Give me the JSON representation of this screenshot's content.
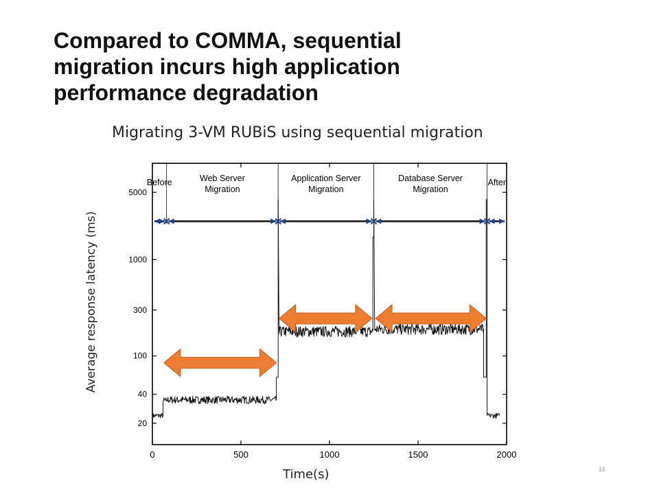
{
  "slide": {
    "title_lines": [
      "Compared to COMMA, sequential",
      "migration incurs high application",
      "performance degradation"
    ],
    "page_number": "16"
  },
  "colors": {
    "arrow_orange": "#ed7d31",
    "arrow_orange_border": "#c55a1a",
    "trace": "#111111",
    "phase_arrow": "#111111",
    "phase_marker": "#1f3f8f"
  },
  "chart_data": {
    "type": "line",
    "title": "Migrating 3-VM RUBiS using sequential migration",
    "xlabel": "Time(s)",
    "ylabel": "Average response latency (ms)",
    "xlim": [
      0,
      2000
    ],
    "ylim": [
      12,
      10000
    ],
    "y_scale": "log",
    "x_ticks": [
      "0",
      "500",
      "1000",
      "1500",
      "2000"
    ],
    "x_tick_values": [
      0,
      500,
      1000,
      1500,
      2000
    ],
    "y_ticks": [
      "20",
      "40",
      "100",
      "300",
      "1000",
      "5000"
    ],
    "y_tick_values": [
      20,
      40,
      100,
      300,
      1000,
      5000
    ],
    "grid": false,
    "phases": [
      {
        "label_lines": [
          "Before"
        ],
        "start": 0,
        "end": 80
      },
      {
        "label_lines": [
          "Web Server",
          "Migration"
        ],
        "start": 80,
        "end": 710
      },
      {
        "label_lines": [
          "Application Server",
          "Migration"
        ],
        "start": 710,
        "end": 1250
      },
      {
        "label_lines": [
          "Database Server",
          "Migration"
        ],
        "start": 1250,
        "end": 1890
      },
      {
        "label_lines": [
          "After"
        ],
        "start": 1890,
        "end": 2000
      }
    ],
    "phase_arrow_latency": 2500,
    "series": [
      {
        "x": [
          0,
          60,
          60,
          80,
          80,
          700,
          700,
          710,
          710,
          715,
          715,
          1245,
          1245,
          1250,
          1250,
          1255,
          1255,
          1870,
          1870,
          1885,
          1885,
          1890,
          1890,
          1960
        ],
        "y": [
          24,
          24,
          34,
          34,
          35,
          35,
          60,
          60,
          4200,
          170,
          180,
          180,
          1700,
          1700,
          4200,
          185,
          190,
          190,
          60,
          60,
          4200,
          4200,
          24,
          24
        ]
      }
    ],
    "annotations": [
      {
        "shape": "double-arrow",
        "x_start": 65,
        "x_end": 700,
        "latency": 85
      },
      {
        "shape": "double-arrow",
        "x_start": 715,
        "x_end": 1240,
        "latency": 245
      },
      {
        "shape": "double-arrow",
        "x_start": 1260,
        "x_end": 1885,
        "latency": 245
      }
    ]
  }
}
